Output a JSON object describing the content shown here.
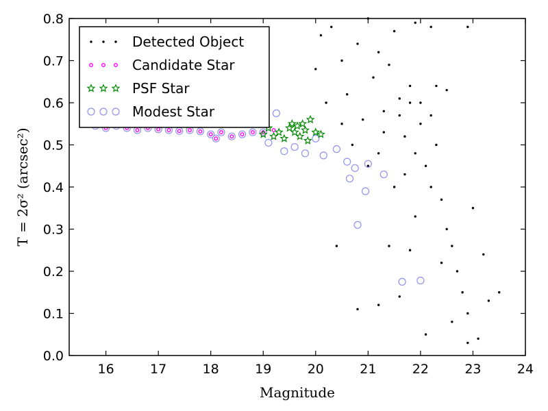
{
  "chart_data": {
    "type": "scatter",
    "xlabel": "Magnitude",
    "ylabel": "T = 2σ² (arcsec²)",
    "xlim": [
      15.3,
      24.0
    ],
    "ylim": [
      0.0,
      0.8
    ],
    "xticks": [
      "16",
      "17",
      "18",
      "19",
      "20",
      "21",
      "22",
      "23",
      "24"
    ],
    "yticks": [
      "0.0",
      "0.1",
      "0.2",
      "0.3",
      "0.4",
      "0.5",
      "0.6",
      "0.7",
      "0.8"
    ],
    "grid": false,
    "legend_position": "top-left",
    "series": [
      {
        "name": "Detected Object",
        "marker": "dot",
        "color": "#000000",
        "points": [
          [
            20.0,
            0.68
          ],
          [
            20.1,
            0.76
          ],
          [
            20.3,
            0.78
          ],
          [
            20.5,
            0.7
          ],
          [
            20.6,
            0.62
          ],
          [
            20.8,
            0.74
          ],
          [
            20.9,
            0.56
          ],
          [
            21.0,
            0.8
          ],
          [
            21.1,
            0.66
          ],
          [
            21.2,
            0.72
          ],
          [
            21.3,
            0.58
          ],
          [
            21.4,
            0.69
          ],
          [
            21.5,
            0.77
          ],
          [
            21.6,
            0.61
          ],
          [
            21.7,
            0.52
          ],
          [
            21.8,
            0.64
          ],
          [
            21.9,
            0.48
          ],
          [
            22.0,
            0.55
          ],
          [
            22.1,
            0.45
          ],
          [
            22.2,
            0.4
          ],
          [
            22.3,
            0.5
          ],
          [
            22.4,
            0.37
          ],
          [
            22.5,
            0.3
          ],
          [
            22.6,
            0.26
          ],
          [
            22.7,
            0.2
          ],
          [
            22.8,
            0.15
          ],
          [
            22.9,
            0.1
          ],
          [
            23.0,
            0.35
          ],
          [
            23.1,
            0.04
          ],
          [
            23.3,
            0.13
          ],
          [
            23.5,
            0.15
          ],
          [
            21.2,
            0.48
          ],
          [
            21.5,
            0.4
          ],
          [
            21.7,
            0.43
          ],
          [
            21.9,
            0.33
          ],
          [
            22.0,
            0.6
          ],
          [
            22.2,
            0.57
          ],
          [
            22.3,
            0.64
          ],
          [
            22.5,
            0.63
          ],
          [
            20.4,
            0.26
          ],
          [
            20.8,
            0.11
          ],
          [
            21.2,
            0.12
          ],
          [
            21.6,
            0.14
          ],
          [
            22.1,
            0.05
          ],
          [
            22.6,
            0.08
          ],
          [
            22.9,
            0.03
          ],
          [
            21.8,
            0.25
          ],
          [
            21.4,
            0.26
          ],
          [
            22.4,
            0.22
          ],
          [
            23.2,
            0.24
          ],
          [
            21.9,
            0.79
          ],
          [
            22.2,
            0.78
          ],
          [
            22.9,
            0.78
          ],
          [
            20.2,
            0.6
          ],
          [
            20.5,
            0.55
          ],
          [
            20.7,
            0.5
          ],
          [
            21.0,
            0.45
          ],
          [
            21.3,
            0.53
          ],
          [
            21.6,
            0.57
          ],
          [
            21.8,
            0.6
          ]
        ]
      },
      {
        "name": "Candidate Star",
        "marker": "small-circle",
        "color": "#ff00ff",
        "points": [
          [
            15.8,
            0.545
          ],
          [
            16.0,
            0.54
          ],
          [
            16.2,
            0.545
          ],
          [
            16.4,
            0.54
          ],
          [
            16.6,
            0.535
          ],
          [
            16.8,
            0.54
          ],
          [
            17.0,
            0.537
          ],
          [
            17.2,
            0.535
          ],
          [
            17.4,
            0.533
          ],
          [
            17.6,
            0.535
          ],
          [
            17.8,
            0.532
          ],
          [
            18.0,
            0.525
          ],
          [
            18.1,
            0.515
          ],
          [
            18.2,
            0.53
          ],
          [
            18.4,
            0.52
          ],
          [
            18.6,
            0.525
          ],
          [
            18.8,
            0.53
          ],
          [
            19.0,
            0.53
          ],
          [
            19.2,
            0.535
          ]
        ]
      },
      {
        "name": "PSF Star",
        "marker": "star",
        "color": "#008800",
        "points": [
          [
            19.0,
            0.525
          ],
          [
            19.1,
            0.54
          ],
          [
            19.2,
            0.52
          ],
          [
            19.3,
            0.53
          ],
          [
            19.4,
            0.515
          ],
          [
            19.5,
            0.54
          ],
          [
            19.55,
            0.55
          ],
          [
            19.6,
            0.53
          ],
          [
            19.65,
            0.545
          ],
          [
            19.7,
            0.52
          ],
          [
            19.75,
            0.55
          ],
          [
            19.8,
            0.535
          ],
          [
            19.85,
            0.51
          ],
          [
            19.9,
            0.56
          ],
          [
            20.0,
            0.53
          ],
          [
            20.1,
            0.525
          ]
        ]
      },
      {
        "name": "Modest Star",
        "marker": "open-circle",
        "color": "#9090ee",
        "points": [
          [
            15.8,
            0.545
          ],
          [
            16.0,
            0.54
          ],
          [
            16.2,
            0.545
          ],
          [
            16.4,
            0.54
          ],
          [
            16.6,
            0.535
          ],
          [
            16.8,
            0.54
          ],
          [
            17.0,
            0.537
          ],
          [
            17.2,
            0.535
          ],
          [
            17.4,
            0.533
          ],
          [
            17.6,
            0.535
          ],
          [
            17.8,
            0.532
          ],
          [
            18.0,
            0.525
          ],
          [
            18.1,
            0.515
          ],
          [
            18.2,
            0.53
          ],
          [
            18.4,
            0.52
          ],
          [
            18.6,
            0.525
          ],
          [
            18.8,
            0.53
          ],
          [
            19.0,
            0.53
          ],
          [
            19.1,
            0.505
          ],
          [
            19.25,
            0.575
          ],
          [
            19.4,
            0.485
          ],
          [
            19.6,
            0.495
          ],
          [
            19.8,
            0.48
          ],
          [
            20.0,
            0.515
          ],
          [
            20.15,
            0.475
          ],
          [
            20.4,
            0.49
          ],
          [
            20.6,
            0.46
          ],
          [
            20.65,
            0.42
          ],
          [
            20.75,
            0.445
          ],
          [
            20.95,
            0.39
          ],
          [
            21.0,
            0.455
          ],
          [
            20.8,
            0.31
          ],
          [
            21.3,
            0.43
          ],
          [
            21.65,
            0.175
          ],
          [
            22.0,
            0.178
          ]
        ]
      }
    ]
  }
}
